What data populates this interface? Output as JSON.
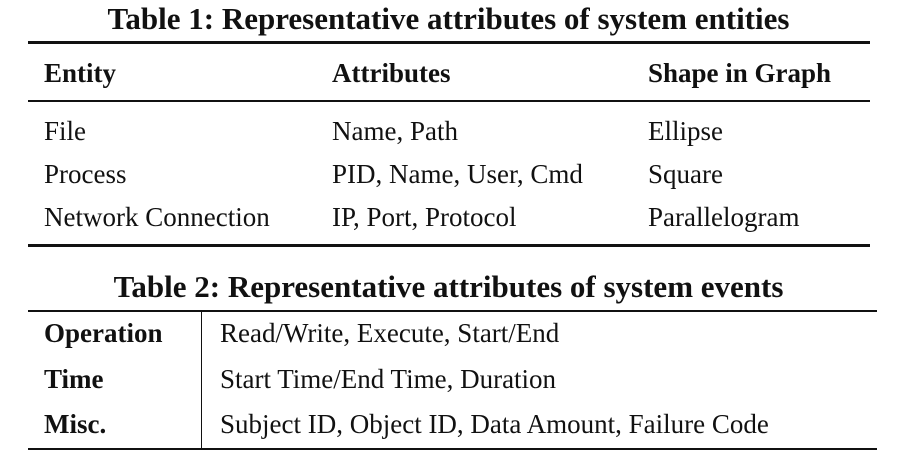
{
  "table1": {
    "caption": "Table 1: Representative attributes of system entities",
    "headers": [
      "Entity",
      "Attributes",
      "Shape in Graph"
    ],
    "rows": [
      [
        "File",
        "Name, Path",
        "Ellipse"
      ],
      [
        "Process",
        "PID, Name, User, Cmd",
        "Square"
      ],
      [
        "Network Connection",
        "IP, Port, Protocol",
        "Parallelogram"
      ]
    ]
  },
  "table2": {
    "caption": "Table 2: Representative attributes of system events",
    "rows": [
      [
        "Operation",
        "Read/Write, Execute, Start/End"
      ],
      [
        "Time",
        "Start Time/End Time, Duration"
      ],
      [
        "Misc.",
        "Subject ID, Object ID, Data Amount, Failure Code"
      ]
    ]
  }
}
